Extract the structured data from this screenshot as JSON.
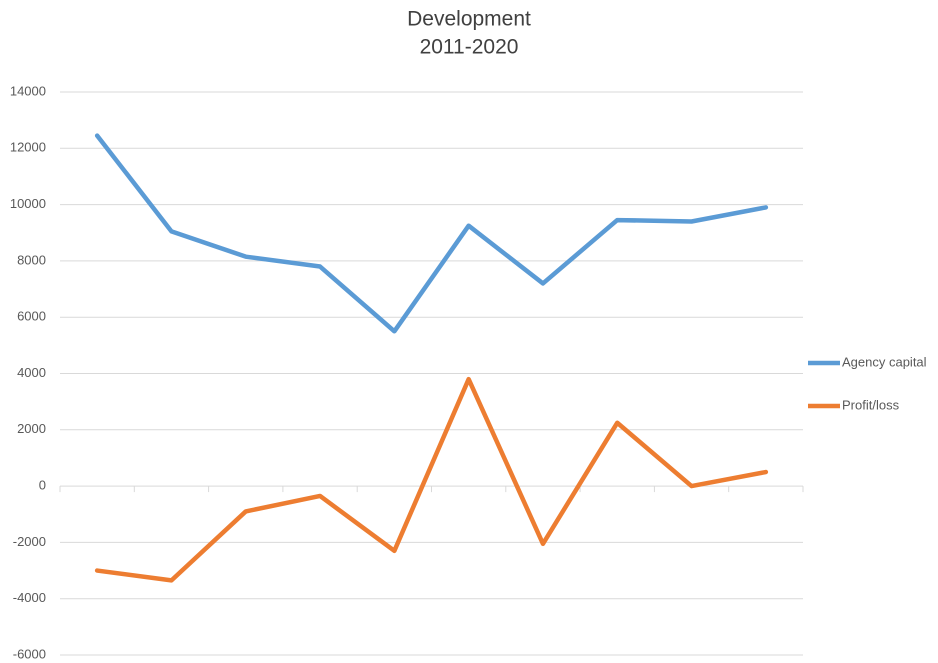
{
  "chart_data": {
    "type": "line",
    "title": "Development",
    "subtitle": "2011-2020",
    "categories": [
      null,
      null,
      null,
      null,
      null,
      null,
      null,
      null,
      null,
      null
    ],
    "series": [
      {
        "name": "Agency capital",
        "color": "#5b9bd5",
        "values": [
          12450,
          9050,
          8150,
          7800,
          5500,
          9250,
          7200,
          9450,
          9400,
          9900
        ]
      },
      {
        "name": "Profit/loss",
        "color": "#ed7d31",
        "values": [
          -3000,
          -3350,
          -900,
          -350,
          -2300,
          3800,
          -2050,
          2250,
          0,
          500
        ]
      }
    ],
    "ylim": [
      -6000,
      14000
    ],
    "yticks": [
      -6000,
      -4000,
      -2000,
      0,
      2000,
      4000,
      6000,
      8000,
      10000,
      12000,
      14000
    ],
    "grid": true,
    "legend": "right"
  }
}
